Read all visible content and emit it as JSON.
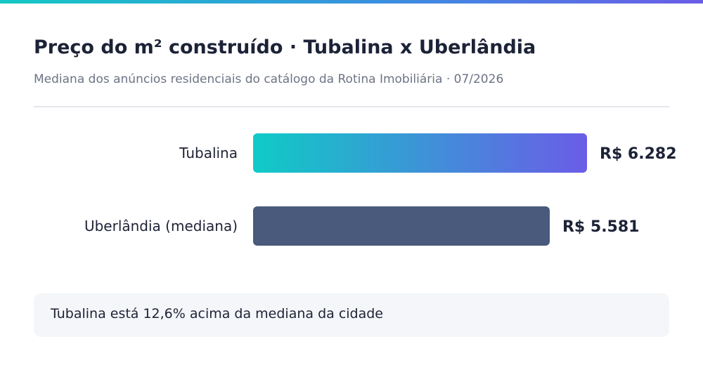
{
  "header": {
    "title": "Preço do m² construído · Tubalina x Uberlândia",
    "subtitle": "Mediana dos anúncios residenciais do catálogo da Rotina Imobiliária · 07/2026"
  },
  "chart_data": {
    "type": "bar",
    "orientation": "horizontal",
    "categories": [
      "Tubalina",
      "Uberlândia (mediana)"
    ],
    "values": [
      6282,
      5581
    ],
    "value_labels": [
      "R$ 6.282",
      "R$ 5.581"
    ],
    "bar_colors": [
      "gradient:#0fcbc7-#6b5ce7",
      "#4a5a7c"
    ],
    "title": "Preço do m² construído · Tubalina x Uberlândia",
    "subtitle": "Mediana dos anúncios residenciais do catálogo da Rotina Imobiliária · 07/2026",
    "xlim": [
      0,
      6282
    ],
    "grid": false,
    "legend": "none"
  },
  "note": {
    "text": "Tubalina está 12,6% acima da mediana da cidade"
  },
  "colors": {
    "accent_start": "#14c8c4",
    "accent_end": "#6b5ce7",
    "bar_secondary": "#4a5a7c",
    "note_background": "#f4f6f9"
  }
}
